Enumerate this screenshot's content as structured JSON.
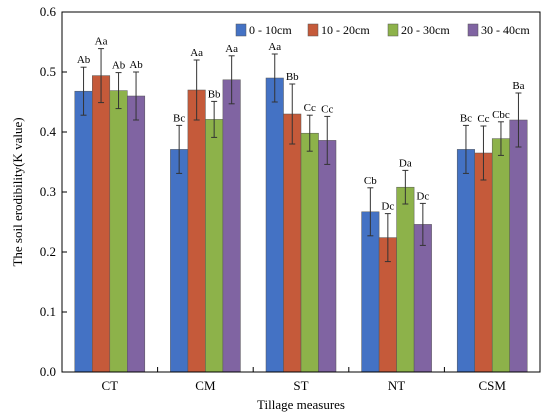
{
  "chart_data": {
    "type": "bar",
    "xlabel": "Tillage measures",
    "ylabel": "The soil erodibility(K value)",
    "ylim": [
      0,
      0.6
    ],
    "yticks": [
      "0.0",
      "0.1",
      "0.2",
      "0.3",
      "0.4",
      "0.5",
      "0.6"
    ],
    "categories": [
      "CT",
      "CM",
      "ST",
      "NT",
      "CSM"
    ],
    "legend_position": "top-right",
    "series": [
      {
        "name": "0 - 10cm",
        "color": "#4472C4",
        "values": [
          0.468,
          0.371,
          0.49,
          0.267,
          0.371
        ],
        "errors": [
          0.04,
          0.04,
          0.04,
          0.04,
          0.04
        ],
        "labels": [
          "Ab",
          "Bc",
          "Aa",
          "Cb",
          "Bc"
        ]
      },
      {
        "name": "10 - 20cm",
        "color": "#C55A3A",
        "values": [
          0.494,
          0.47,
          0.43,
          0.224,
          0.365
        ],
        "errors": [
          0.045,
          0.05,
          0.05,
          0.04,
          0.045
        ],
        "labels": [
          "Aa",
          "Aa",
          "Bb",
          "Dc",
          "Cc"
        ]
      },
      {
        "name": "20 - 30cm",
        "color": "#8DB24A",
        "values": [
          0.469,
          0.421,
          0.398,
          0.308,
          0.389
        ],
        "errors": [
          0.03,
          0.03,
          0.03,
          0.028,
          0.028
        ],
        "labels": [
          "Ab",
          "Bb",
          "Cc",
          "Da",
          "Cbc"
        ]
      },
      {
        "name": "30 - 40cm",
        "color": "#8064A2",
        "values": [
          0.46,
          0.487,
          0.386,
          0.246,
          0.42
        ],
        "errors": [
          0.04,
          0.04,
          0.04,
          0.035,
          0.045
        ],
        "labels": [
          "Ab",
          "Aa",
          "Cc",
          "Dc",
          "Ba"
        ]
      }
    ]
  }
}
